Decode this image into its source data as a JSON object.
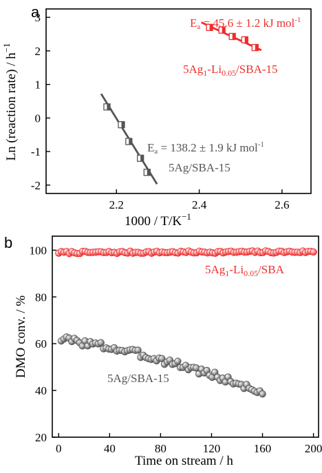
{
  "chart_data": [
    {
      "panel": "a",
      "type": "scatter",
      "xlabel": "1000 / T/K",
      "xlabel_sup": "−1",
      "ylabel": "Ln (reaction rate) / h",
      "ylabel_sup": "−1",
      "xlim": [
        2.03,
        2.67
      ],
      "ylim": [
        -2.25,
        3.25
      ],
      "xticks": [
        2.2,
        2.4,
        2.6
      ],
      "yticks": [
        -2,
        -1,
        0,
        1,
        2,
        3
      ],
      "grid": false,
      "series": [
        {
          "color": "#ee2d2d",
          "label_parts": [
            "5Ag",
            "1",
            "-Li",
            "0.05",
            "/SBA-15"
          ],
          "annotation": "E",
          "annotation_sub": "a",
          "annotation_value": " = 45.6 ± 1.2 kJ mol",
          "annotation_sup": "-1",
          "x": [
            2.425,
            2.455,
            2.48,
            2.51,
            2.535
          ],
          "y": [
            2.7,
            2.62,
            2.43,
            2.33,
            2.1
          ],
          "fit": [
            [
              2.405,
              2.85
            ],
            [
              2.55,
              2.02
            ]
          ]
        },
        {
          "color": "#555555",
          "label_parts": [
            "5Ag/SBA-15"
          ],
          "annotation": "E",
          "annotation_sub": "a",
          "annotation_value": " = 138.2  ± 1.9 kJ mol",
          "annotation_sup": "-1",
          "x": [
            2.177,
            2.212,
            2.23,
            2.258,
            2.274
          ],
          "y": [
            0.33,
            -0.2,
            -0.7,
            -1.2,
            -1.62
          ],
          "fit": [
            [
              2.163,
              0.72
            ],
            [
              2.298,
              -1.97
            ]
          ]
        }
      ]
    },
    {
      "panel": "b",
      "type": "scatter",
      "xlabel": "Time on stream / h",
      "ylabel": "DMO conv. / %",
      "xlim": [
        -5,
        204
      ],
      "ylim": [
        20,
        106
      ],
      "xticks": [
        0,
        40,
        80,
        120,
        160,
        200
      ],
      "yticks": [
        20,
        40,
        60,
        80,
        100
      ],
      "grid": false,
      "series": [
        {
          "color": "#ee2d2d",
          "label_parts": [
            "5Ag",
            "1",
            "-Li",
            "0.05",
            "/SBA"
          ],
          "x_start": 0,
          "x_end": 200,
          "n_points": 97,
          "y_start": 99,
          "y_end": 99.3,
          "trend": "flat",
          "noise": 0.5,
          "noise_seed": 7
        },
        {
          "color": "#555555",
          "label_parts": [
            "5Ag/SBA-15"
          ],
          "x_start": 2,
          "x_end": 160,
          "n_points": 77,
          "y_start": 62,
          "y_end": 39,
          "trend": "curved_down",
          "noise": 1.6,
          "noise_seed": 3
        }
      ]
    }
  ]
}
